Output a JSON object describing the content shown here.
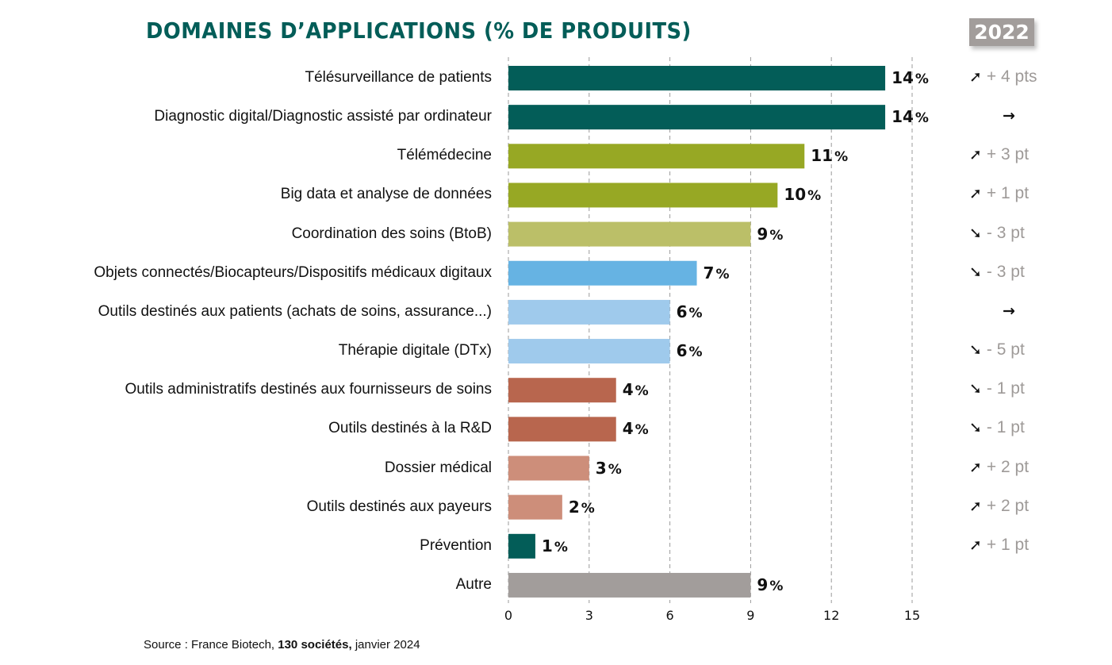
{
  "chart_data": {
    "type": "bar",
    "orientation": "horizontal",
    "title": "DOMAINES D'APPLICATIONS (% DE PRODUITS)",
    "xlabel": "",
    "ylabel": "",
    "xlim": [
      0,
      15
    ],
    "xticks": [
      0,
      3,
      6,
      9,
      12,
      15
    ],
    "grid": "vertical dashed",
    "value_suffix": "%",
    "categories": [
      "Télésurveillance de patients",
      "Diagnostic digital/Diagnostic assisté par ordinateur",
      "Télémédecine",
      "Big data et analyse de données",
      "Coordination des soins (BtoB)",
      "Objets connectés/Biocapteurs/Dispositifs médicaux digitaux",
      "Outils destinés aux patients (achats de soins, assurance...)",
      "Thérapie digitale (DTx)",
      "Outils administratifs destinés aux fournisseurs de soins",
      "Outils destinés à la R&D",
      "Dossier médical",
      "Outils destinés aux payeurs",
      "Prévention",
      "Autre"
    ],
    "values": [
      14,
      14,
      11,
      10,
      9,
      7,
      6,
      6,
      4,
      4,
      3,
      2,
      1,
      9
    ],
    "colors": [
      "#035d58",
      "#035d58",
      "#97a824",
      "#97a824",
      "#bbbf68",
      "#66b3e3",
      "#9fcaec",
      "#9fcaec",
      "#b8664e",
      "#b8664e",
      "#cd8e7a",
      "#cd8e7a",
      "#035d58",
      "#a29d9b"
    ],
    "comparison": {
      "label": "2022",
      "changes": [
        {
          "direction": "up",
          "text": "+ 4 pts"
        },
        {
          "direction": "flat",
          "text": ""
        },
        {
          "direction": "up",
          "text": "+ 3 pt"
        },
        {
          "direction": "up",
          "text": "+ 1 pt"
        },
        {
          "direction": "down",
          "text": "- 3 pt"
        },
        {
          "direction": "down",
          "text": "- 3 pt"
        },
        {
          "direction": "flat",
          "text": ""
        },
        {
          "direction": "down",
          "text": "- 5 pt"
        },
        {
          "direction": "down",
          "text": "- 1 pt"
        },
        {
          "direction": "down",
          "text": "- 1 pt"
        },
        {
          "direction": "up",
          "text": "+ 2 pt"
        },
        {
          "direction": "up",
          "text": "+ 2 pt"
        },
        {
          "direction": "up",
          "text": "+ 1 pt"
        },
        {
          "direction": "none",
          "text": ""
        }
      ]
    }
  },
  "header": {
    "title": "DOMAINES D’APPLICATIONS (% DE PRODUITS)",
    "year_badge": "2022"
  },
  "footer": {
    "source_prefix": "Source : France Biotech, ",
    "source_bold": "130 sociétés,",
    "source_suffix": " janvier 2024"
  },
  "icons": {
    "up": "➚",
    "down": "➘",
    "flat": "→"
  }
}
